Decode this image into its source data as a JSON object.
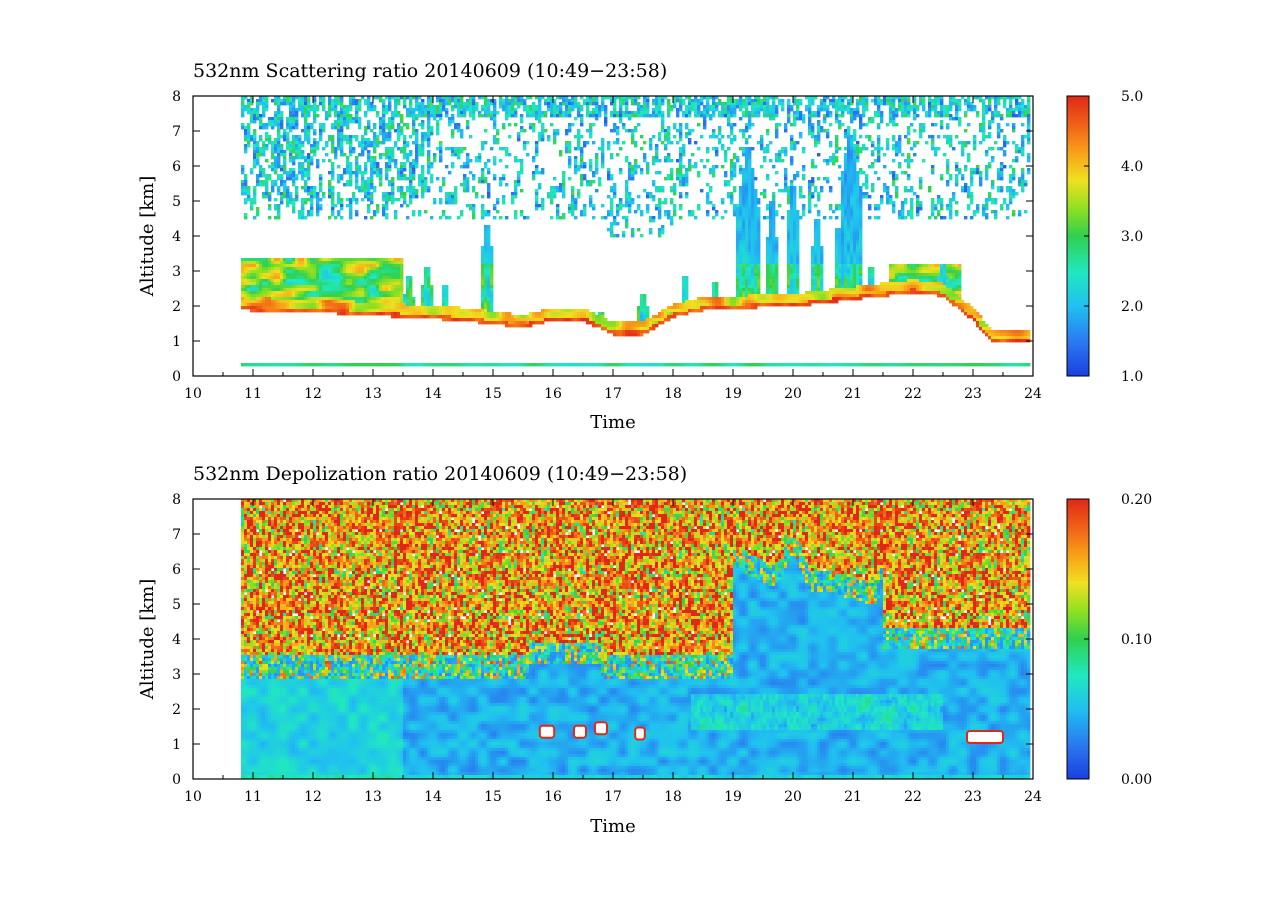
{
  "chart_data": [
    {
      "type": "heatmap",
      "title": "532nm Scattering ratio  20140609 (10:49−23:58)",
      "xlabel": "Time",
      "ylabel": "Altitude [km]",
      "xlim": [
        10,
        24
      ],
      "ylim": [
        0,
        8
      ],
      "x_ticks": [
        "10",
        "11",
        "12",
        "13",
        "14",
        "15",
        "16",
        "17",
        "18",
        "19",
        "20",
        "21",
        "22",
        "23",
        "24"
      ],
      "y_ticks": [
        "0",
        "1",
        "2",
        "3",
        "4",
        "5",
        "6",
        "7",
        "8"
      ],
      "data_start_time": 10.82,
      "data_end_time": 23.97,
      "colorbar": {
        "range": [
          1.0,
          5.0
        ],
        "tick_labels": [
          "1.0",
          "2.0",
          "3.0",
          "4.0",
          "5.0"
        ]
      },
      "features": {
        "surface_layer_km": 0.3,
        "cloud_base_profile": [
          {
            "t": 10.82,
            "alt": 1.9
          },
          {
            "t": 11.5,
            "alt": 1.85
          },
          {
            "t": 12.5,
            "alt": 1.8
          },
          {
            "t": 13.5,
            "alt": 1.7
          },
          {
            "t": 14.5,
            "alt": 1.6
          },
          {
            "t": 15.0,
            "alt": 1.5
          },
          {
            "t": 15.5,
            "alt": 1.4
          },
          {
            "t": 16.0,
            "alt": 1.6
          },
          {
            "t": 16.5,
            "alt": 1.6
          },
          {
            "t": 17.0,
            "alt": 1.2
          },
          {
            "t": 17.5,
            "alt": 1.2
          },
          {
            "t": 18.0,
            "alt": 1.7
          },
          {
            "t": 18.5,
            "alt": 1.9
          },
          {
            "t": 19.0,
            "alt": 1.9
          },
          {
            "t": 19.5,
            "alt": 2.0
          },
          {
            "t": 20.0,
            "alt": 2.0
          },
          {
            "t": 20.5,
            "alt": 2.1
          },
          {
            "t": 21.0,
            "alt": 2.2
          },
          {
            "t": 21.5,
            "alt": 2.3
          },
          {
            "t": 22.0,
            "alt": 2.4
          },
          {
            "t": 22.5,
            "alt": 2.3
          },
          {
            "t": 23.0,
            "alt": 1.6
          },
          {
            "t": 23.3,
            "alt": 1.0
          },
          {
            "t": 23.97,
            "alt": 1.0
          }
        ]
      }
    },
    {
      "type": "heatmap",
      "title": "532nm Depolization ratio  20140609 (10:49−23:58)",
      "xlabel": "Time",
      "ylabel": "Altitude [km]",
      "xlim": [
        10,
        24
      ],
      "ylim": [
        0,
        8
      ],
      "x_ticks": [
        "10",
        "11",
        "12",
        "13",
        "14",
        "15",
        "16",
        "17",
        "18",
        "19",
        "20",
        "21",
        "22",
        "23",
        "24"
      ],
      "y_ticks": [
        "0",
        "1",
        "2",
        "3",
        "4",
        "5",
        "6",
        "7",
        "8"
      ],
      "data_start_time": 10.82,
      "data_end_time": 23.97,
      "colorbar": {
        "range": [
          0.0,
          0.2
        ],
        "tick_labels": [
          "0.00",
          "0.10",
          "0.20"
        ]
      },
      "features": {
        "noisy_high_depol_above_km": 3.5,
        "low_depol_below_km": 3.5
      }
    }
  ],
  "colors": {
    "cb_stops": [
      "#1a40e0",
      "#2a78f0",
      "#20c0f0",
      "#20e8c0",
      "#30d050",
      "#90e020",
      "#f0e020",
      "#f8a018",
      "#f06018",
      "#e02818"
    ]
  }
}
